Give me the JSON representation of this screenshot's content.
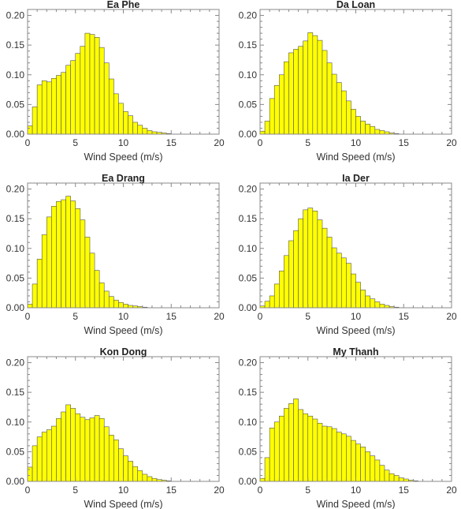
{
  "chart_data": [
    {
      "type": "bar",
      "title": "Ea Phe",
      "xlabel": "Wind Speed (m/s)",
      "ylabel": "",
      "xlim": [
        0,
        20
      ],
      "ylim": [
        0,
        0.21
      ],
      "x_ticks": [
        "0",
        "5",
        "10",
        "15",
        "20"
      ],
      "y_ticks": [
        "0.00",
        "0.05",
        "0.10",
        "0.15",
        "0.20"
      ],
      "bin_width": 0.5,
      "bin_start": 0,
      "values": [
        0.014,
        0.046,
        0.083,
        0.09,
        0.088,
        0.094,
        0.099,
        0.104,
        0.116,
        0.124,
        0.136,
        0.148,
        0.17,
        0.168,
        0.163,
        0.146,
        0.12,
        0.093,
        0.068,
        0.052,
        0.038,
        0.031,
        0.02,
        0.015,
        0.01,
        0.006,
        0.004,
        0.003,
        0.002,
        0.001
      ]
    },
    {
      "type": "bar",
      "title": "Da Loan",
      "xlabel": "Wind Speed (m/s)",
      "ylabel": "",
      "xlim": [
        0,
        20
      ],
      "ylim": [
        0,
        0.21
      ],
      "x_ticks": [
        "0",
        "5",
        "10",
        "15",
        "20"
      ],
      "y_ticks": [
        "0.00",
        "0.05",
        "0.10",
        "0.15",
        "0.20"
      ],
      "bin_width": 0.5,
      "bin_start": 0,
      "values": [
        0.005,
        0.022,
        0.06,
        0.082,
        0.1,
        0.122,
        0.137,
        0.143,
        0.148,
        0.157,
        0.171,
        0.166,
        0.158,
        0.141,
        0.12,
        0.101,
        0.087,
        0.073,
        0.056,
        0.042,
        0.03,
        0.022,
        0.017,
        0.013,
        0.008,
        0.006,
        0.004,
        0.002,
        0.001
      ]
    },
    {
      "type": "bar",
      "title": "Ea Drang",
      "xlabel": "Wind Speed (m/s)",
      "ylabel": "",
      "xlim": [
        0,
        20
      ],
      "ylim": [
        0,
        0.21
      ],
      "x_ticks": [
        "0",
        "5",
        "10",
        "15",
        "20"
      ],
      "y_ticks": [
        "0.00",
        "0.05",
        "0.10",
        "0.15",
        "0.20"
      ],
      "bin_width": 0.5,
      "bin_start": 0,
      "values": [
        0.006,
        0.04,
        0.082,
        0.123,
        0.153,
        0.171,
        0.179,
        0.182,
        0.188,
        0.18,
        0.167,
        0.148,
        0.119,
        0.092,
        0.063,
        0.042,
        0.028,
        0.019,
        0.013,
        0.009,
        0.006,
        0.004,
        0.003,
        0.002,
        0.001
      ]
    },
    {
      "type": "bar",
      "title": "Ia Der",
      "xlabel": "Wind Speed (m/s)",
      "ylabel": "",
      "xlim": [
        0,
        20
      ],
      "ylim": [
        0,
        0.21
      ],
      "x_ticks": [
        "0",
        "5",
        "10",
        "15",
        "20"
      ],
      "y_ticks": [
        "0.00",
        "0.05",
        "0.10",
        "0.15",
        "0.20"
      ],
      "bin_width": 0.5,
      "bin_start": 0,
      "values": [
        0.003,
        0.011,
        0.02,
        0.04,
        0.062,
        0.088,
        0.113,
        0.13,
        0.15,
        0.165,
        0.168,
        0.163,
        0.148,
        0.134,
        0.119,
        0.101,
        0.092,
        0.084,
        0.075,
        0.057,
        0.043,
        0.03,
        0.02,
        0.015,
        0.01,
        0.006,
        0.004,
        0.002,
        0.001
      ]
    },
    {
      "type": "bar",
      "title": "Kon Dong",
      "xlabel": "Wind Speed (m/s)",
      "ylabel": "",
      "xlim": [
        0,
        20
      ],
      "ylim": [
        0,
        0.21
      ],
      "x_ticks": [
        "0",
        "5",
        "10",
        "15",
        "20"
      ],
      "y_ticks": [
        "0.00",
        "0.05",
        "0.10",
        "0.15",
        "0.20"
      ],
      "bin_width": 0.5,
      "bin_start": 0,
      "values": [
        0.024,
        0.06,
        0.075,
        0.083,
        0.087,
        0.093,
        0.106,
        0.117,
        0.129,
        0.123,
        0.114,
        0.108,
        0.104,
        0.107,
        0.111,
        0.106,
        0.092,
        0.078,
        0.07,
        0.055,
        0.043,
        0.034,
        0.025,
        0.018,
        0.012,
        0.008,
        0.005,
        0.003,
        0.002,
        0.001
      ]
    },
    {
      "type": "bar",
      "title": "My Thanh",
      "xlabel": "Wind Speed (m/s)",
      "ylabel": "",
      "xlim": [
        0,
        20
      ],
      "ylim": [
        0,
        0.21
      ],
      "x_ticks": [
        "0",
        "5",
        "10",
        "15",
        "20"
      ],
      "y_ticks": [
        "0.00",
        "0.05",
        "0.10",
        "0.15",
        "0.20"
      ],
      "bin_width": 0.5,
      "bin_start": 0,
      "values": [
        0.005,
        0.04,
        0.09,
        0.1,
        0.11,
        0.123,
        0.131,
        0.139,
        0.121,
        0.114,
        0.11,
        0.105,
        0.098,
        0.093,
        0.092,
        0.089,
        0.083,
        0.08,
        0.076,
        0.069,
        0.063,
        0.058,
        0.05,
        0.043,
        0.036,
        0.027,
        0.019,
        0.013,
        0.01,
        0.006,
        0.004,
        0.002,
        0.001
      ]
    }
  ],
  "style": {
    "bar_fill": "#ffff00",
    "bar_stroke": "#555555",
    "frame_color": "#888888"
  }
}
